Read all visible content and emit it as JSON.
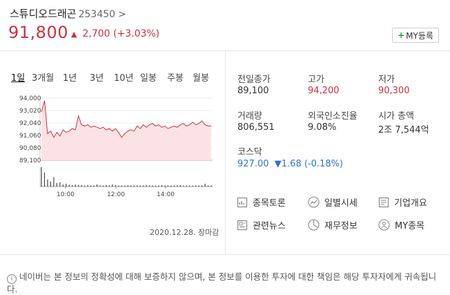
{
  "stock": {
    "name": "스튜디오드래곤",
    "code": "253450",
    "chevron": ">",
    "price": "91,800",
    "change_arrow": "▲",
    "change": "2,700",
    "change_pct": "(+3.03%)",
    "my_button": "MY등록"
  },
  "tabs": [
    "1일",
    "3개월",
    "1년",
    "3년",
    "10년",
    "일봉",
    "주봉",
    "월봉"
  ],
  "chart_data": {
    "type": "line",
    "y_ticks": [
      "94,000",
      "93,020",
      "92,040",
      "91,060",
      "90,080",
      "89,100"
    ],
    "x_ticks": [
      "10:00",
      "12:00",
      "14:00"
    ],
    "ylim": [
      89100,
      94000
    ],
    "base_price": 89100,
    "series": [
      {
        "values": [
          92900,
          93800,
          91200,
          91400,
          90900,
          91300,
          91000,
          91500,
          91300,
          91400,
          91600,
          91500,
          92600,
          91900,
          91800,
          91900,
          91700,
          91800,
          91700,
          91600,
          91700,
          91500,
          91600,
          91400,
          91600,
          91300,
          90900,
          91200,
          91400,
          91500,
          91400,
          91800,
          91600,
          91900,
          91700,
          91900,
          92000,
          91800,
          91900,
          91700,
          91800,
          91600,
          91700,
          91800,
          91700,
          91900,
          92000,
          91800,
          91900,
          92100,
          91900,
          92000,
          92200,
          91900,
          91800,
          91800
        ]
      }
    ],
    "volume": [
      55,
      40,
      20,
      14,
      26,
      10,
      12,
      6,
      8,
      5,
      4,
      6,
      5,
      4,
      3,
      4,
      3,
      3,
      6,
      3,
      3,
      4,
      3,
      6,
      4,
      3,
      3,
      3,
      4,
      3,
      3,
      3,
      3,
      3,
      4,
      3,
      3,
      3,
      3,
      4,
      3,
      3,
      3,
      3,
      3,
      4,
      3,
      3,
      3,
      3,
      3,
      3,
      3,
      8,
      3,
      3
    ]
  },
  "date": "2020.12.28. 장마감",
  "stats": [
    {
      "label": "전일종가",
      "value": "89,100",
      "color": ""
    },
    {
      "label": "고가",
      "value": "94,200",
      "color": "red"
    },
    {
      "label": "저가",
      "value": "90,300",
      "color": "red"
    },
    {
      "label": "거래량",
      "value": "806,551",
      "color": ""
    },
    {
      "label": "외국인소진율",
      "value": "9.08%",
      "color": ""
    },
    {
      "label": "시가 총액",
      "value": "2조 7,544억",
      "color": ""
    }
  ],
  "index": {
    "label": "코스닥",
    "value": "927.00",
    "arrow": "▼",
    "change": "1.68",
    "change_pct": "(-0.18%)"
  },
  "links": [
    {
      "label": "종목토론",
      "icon": "discussion-icon"
    },
    {
      "label": "일별시세",
      "icon": "trend-icon"
    },
    {
      "label": "기업개요",
      "icon": "document-icon"
    },
    {
      "label": "관련뉴스",
      "icon": "news-icon"
    },
    {
      "label": "재무정보",
      "icon": "pie-chart-icon"
    },
    {
      "label": "MY종목",
      "icon": "person-icon"
    }
  ],
  "notice": {
    "icon": "i",
    "text": "네이버는 본 정보의 정확성에 대해 보증하지 않으며, 본 정보를 이용한 투자에 대한 책임은 해당 투자자에게 귀속됩니다."
  }
}
